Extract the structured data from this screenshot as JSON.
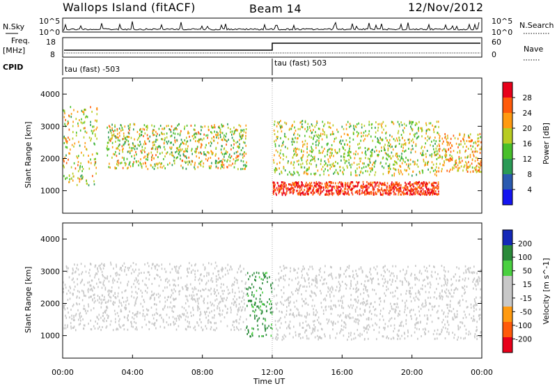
{
  "header": {
    "site": "Wallops Island (fitACF)",
    "beam": "Beam 14",
    "date": "12/Nov/2012"
  },
  "noise_panel": {
    "left_label": "N.Sky",
    "left_ticks": [
      "10^5",
      "10^0"
    ],
    "right_label": "N.Search",
    "right_ticks": [
      "10^5",
      "10^0"
    ]
  },
  "freq_panel": {
    "left_label": "Freq.",
    "left_unit": "[MHz]",
    "left_ticks": [
      "18",
      "8"
    ],
    "right_label": "Nave",
    "right_ticks": [
      "60",
      "0"
    ]
  },
  "cpid_panel": {
    "label": "CPID",
    "segments": [
      "tau (fast) -503",
      "tau (fast) 503"
    ]
  },
  "chart_data": [
    {
      "type": "heatmap",
      "title": "",
      "xlabel": "Time UT",
      "ylabel": "Slant Range [km]",
      "xticks": [
        "00:00",
        "04:00",
        "08:00",
        "12:00",
        "16:00",
        "20:00",
        "00:00"
      ],
      "yticks": [
        "1000",
        "2000",
        "3000",
        "4000"
      ],
      "ylim": [
        300,
        4500
      ],
      "colorbar": {
        "label": "Power [dB]",
        "ticks": [
          "28",
          "24",
          "20",
          "16",
          "12",
          "8",
          "4"
        ],
        "colors": [
          "#e8001a",
          "#ff5a0a",
          "#ff9a10",
          "#b8cc22",
          "#48c02a",
          "#2a9a56",
          "#2a5ab0",
          "#1414f0"
        ]
      },
      "features": [
        {
          "desc_segment": "00:00-02:00",
          "range_km": [
            1200,
            3700
          ],
          "dB": [
            10,
            24
          ]
        },
        {
          "desc_segment": "02:30-10:30",
          "range_km": [
            1700,
            3100
          ],
          "dB": [
            8,
            24
          ]
        },
        {
          "desc_segment": "12:00-21:30",
          "range_km": [
            900,
            1300
          ],
          "dB": [
            22,
            30
          ]
        },
        {
          "desc_segment": "12:00-21:30",
          "range_km": [
            1500,
            3200
          ],
          "dB": [
            10,
            22
          ]
        },
        {
          "desc_segment": "21:30-24:00",
          "range_km": [
            1600,
            2800
          ],
          "dB": [
            14,
            26
          ]
        }
      ]
    },
    {
      "type": "heatmap",
      "title": "",
      "xlabel": "Time UT",
      "ylabel": "Slant Range [km]",
      "xticks": [
        "00:00",
        "04:00",
        "08:00",
        "12:00",
        "16:00",
        "20:00",
        "00:00"
      ],
      "yticks": [
        "1000",
        "2000",
        "3000",
        "4000"
      ],
      "ylim": [
        300,
        4500
      ],
      "colorbar": {
        "label": "Velocity [m s^-1]",
        "ticks": [
          "200",
          "100",
          "50",
          "15",
          "-15",
          "-50",
          "-100",
          "-200"
        ],
        "colors": [
          "#1428b8",
          "#2a8a3a",
          "#4ad040",
          "#c8c8c8",
          "#c8c8c8",
          "#ff9a10",
          "#ff5a0a",
          "#e8001a"
        ]
      },
      "features": [
        {
          "desc_segment": "00:00-10:30",
          "range_km": [
            1200,
            3300
          ],
          "velocity_m_s": [
            -15,
            15
          ]
        },
        {
          "desc_segment": "10:30-12:00",
          "range_km": [
            1000,
            3000
          ],
          "velocity_m_s": [
            50,
            100
          ]
        },
        {
          "desc_segment": "12:00-24:00",
          "range_km": [
            900,
            3200
          ],
          "velocity_m_s": [
            -15,
            15
          ]
        }
      ]
    }
  ]
}
